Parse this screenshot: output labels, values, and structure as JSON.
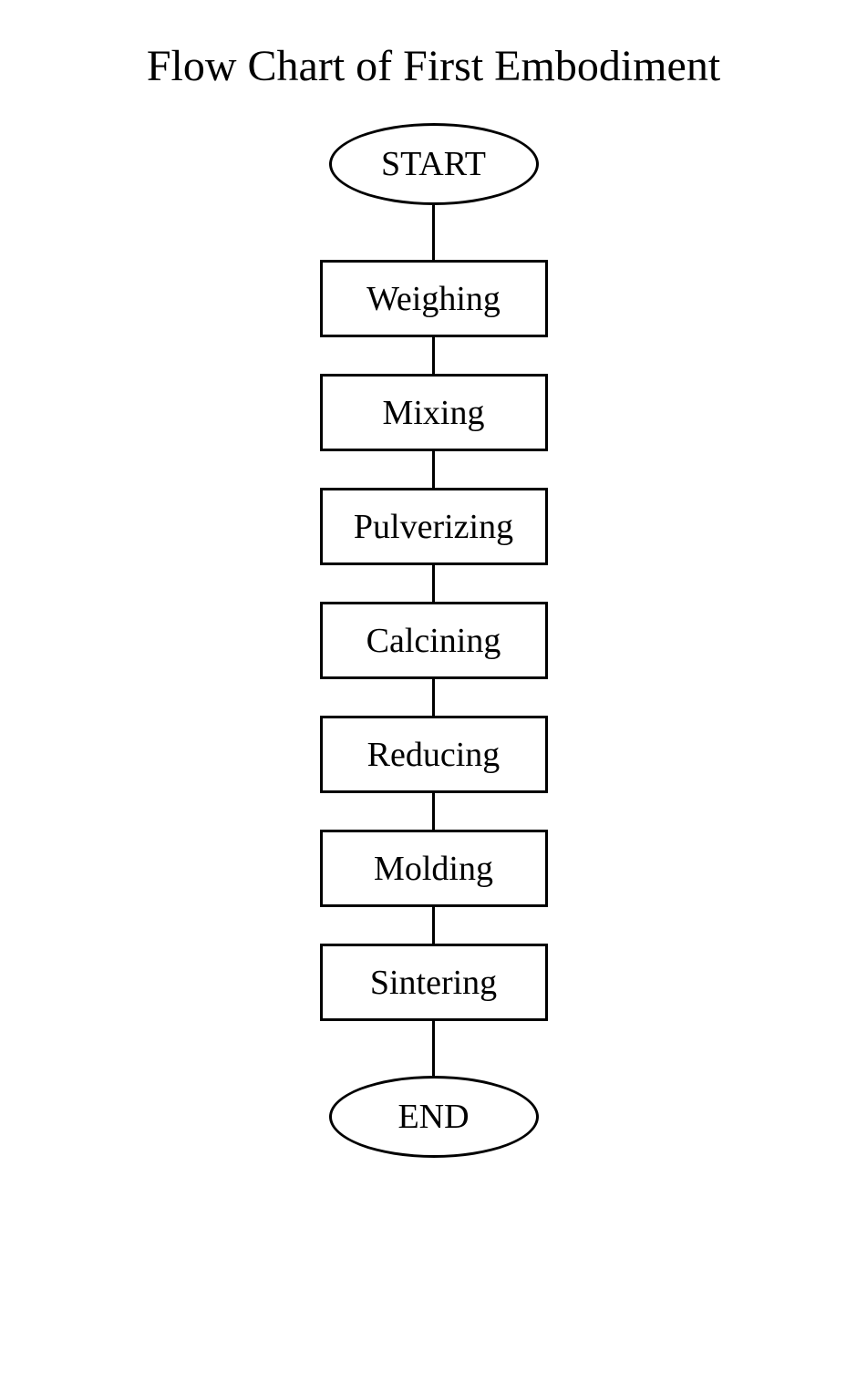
{
  "flowchart": {
    "type": "flowchart",
    "title": "Flow Chart of First Embodiment",
    "title_fontsize": 48,
    "background_color": "#ffffff",
    "text_color": "#000000",
    "border_color": "#000000",
    "border_width": 3,
    "font_family": "Times New Roman",
    "terminal_shape": "ellipse",
    "terminal_width": 230,
    "terminal_height": 90,
    "process_shape": "rectangle",
    "process_width": 250,
    "process_height": 85,
    "node_fontsize": 38,
    "connector_width": 3,
    "connector_color": "#000000",
    "first_connector_height": 60,
    "between_connector_height": 40,
    "last_connector_height": 60,
    "nodes": [
      {
        "id": "start",
        "type": "terminal",
        "label": "START"
      },
      {
        "id": "weighing",
        "type": "process",
        "label": "Weighing"
      },
      {
        "id": "mixing",
        "type": "process",
        "label": "Mixing"
      },
      {
        "id": "pulverizing",
        "type": "process",
        "label": "Pulverizing"
      },
      {
        "id": "calcining",
        "type": "process",
        "label": "Calcining"
      },
      {
        "id": "reducing",
        "type": "process",
        "label": "Reducing"
      },
      {
        "id": "molding",
        "type": "process",
        "label": "Molding"
      },
      {
        "id": "sintering",
        "type": "process",
        "label": "Sintering"
      },
      {
        "id": "end",
        "type": "terminal",
        "label": "END"
      }
    ],
    "edges": [
      {
        "from": "start",
        "to": "weighing"
      },
      {
        "from": "weighing",
        "to": "mixing"
      },
      {
        "from": "mixing",
        "to": "pulverizing"
      },
      {
        "from": "pulverizing",
        "to": "calcining"
      },
      {
        "from": "calcining",
        "to": "reducing"
      },
      {
        "from": "reducing",
        "to": "molding"
      },
      {
        "from": "molding",
        "to": "sintering"
      },
      {
        "from": "sintering",
        "to": "end"
      }
    ]
  }
}
